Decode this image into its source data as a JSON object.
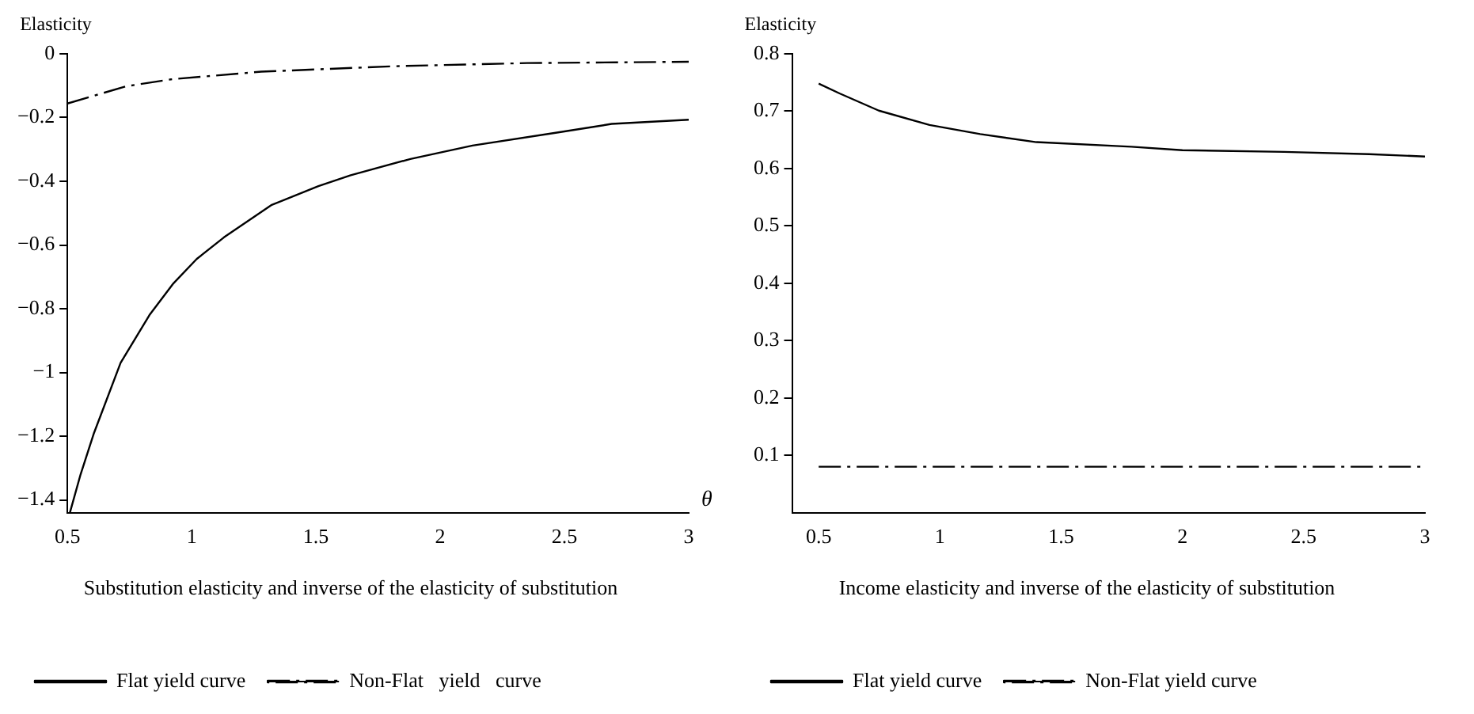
{
  "chart_data": [
    {
      "type": "line",
      "title": "Substitution elasticity and inverse of the elasticity of substitution",
      "xlabel": "θ",
      "ylabel": "Elasticity",
      "xlim": [
        0.5,
        3
      ],
      "xticks": [
        0.5,
        1,
        1.5,
        2,
        2.5,
        3
      ],
      "ylim": [
        -1.44,
        0
      ],
      "yticks": [
        0,
        -0.2,
        -0.4,
        -0.6,
        -0.8,
        -1,
        -1.2,
        -1.4
      ],
      "grid": false,
      "legend": "bottom",
      "marker": "none",
      "series": [
        {
          "name": "Flat yield curve",
          "color": "#000000",
          "line_style": "solid",
          "x": [
            0.51,
            0.553,
            0.607,
            0.714,
            0.83,
            0.927,
            1.02,
            1.13,
            1.32,
            1.51,
            1.64,
            1.88,
            2.13,
            2.48,
            2.69,
            3
          ],
          "values": [
            -1.44,
            -1.32,
            -1.19,
            -0.97,
            -0.82,
            -0.72,
            -0.644,
            -0.576,
            -0.475,
            -0.415,
            -0.381,
            -0.33,
            -0.288,
            -0.246,
            -0.22,
            -0.207
          ]
        },
        {
          "name": "Non-Flat   yield   curve",
          "color": "#000000",
          "line_style": "dashdot",
          "x": [
            0.5,
            0.735,
            0.917,
            1.28,
            1.81,
            2.35,
            3
          ],
          "values": [
            -0.156,
            -0.102,
            -0.08,
            -0.056,
            -0.039,
            -0.029,
            -0.025
          ]
        }
      ]
    },
    {
      "type": "line",
      "title": "Income elasticity and inverse of the elasticity of substitution",
      "ylabel": "Elasticity",
      "xlim": [
        0.39,
        3
      ],
      "xticks": [
        0.5,
        1,
        1.5,
        2,
        2.5,
        3
      ],
      "ylim": [
        0,
        0.8
      ],
      "yticks": [
        0.1,
        0.2,
        0.3,
        0.4,
        0.5,
        0.6,
        0.7,
        0.8
      ],
      "grid": false,
      "legend": "bottom",
      "marker": "none",
      "series": [
        {
          "name": "Flat yield curve",
          "color": "#000000",
          "line_style": "solid",
          "x": [
            0.5,
            0.586,
            0.748,
            0.957,
            1.166,
            1.398,
            1.79,
            2.0,
            2.42,
            2.77,
            3
          ],
          "values": [
            0.748,
            0.731,
            0.701,
            0.676,
            0.66,
            0.646,
            0.638,
            0.632,
            0.629,
            0.625,
            0.621
          ]
        },
        {
          "name": "Non-Flat yield curve",
          "color": "#000000",
          "line_style": "dashdot",
          "x": [
            0.5,
            3
          ],
          "values": [
            0.08,
            0.08
          ]
        }
      ]
    }
  ]
}
